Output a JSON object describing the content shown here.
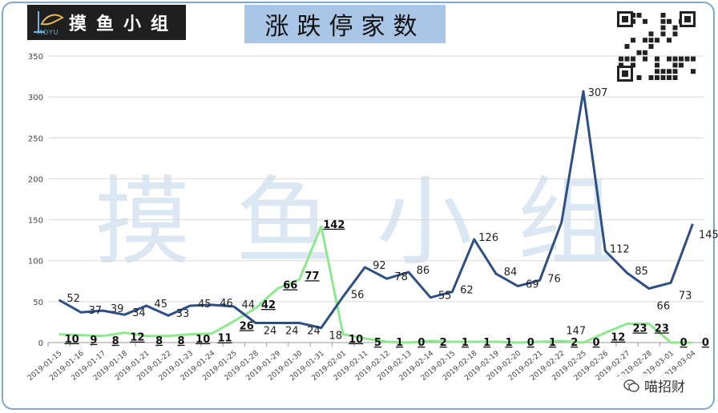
{
  "header": {
    "logo_text": "摸鱼小组",
    "logo_sub": "MOYU",
    "title": "涨跌停家数"
  },
  "watermark": "摸鱼小组",
  "footer": {
    "wechat_label": "喵招财"
  },
  "colors": {
    "limit_up": "#2e4f86",
    "limit_down": "#8ee88e",
    "title_bg": "#a9c6e6",
    "frame": "#7fa8cf"
  },
  "chart_data": {
    "type": "line",
    "title": "涨跌停家数",
    "ylim": [
      0,
      350
    ],
    "yticks": [
      0,
      50,
      100,
      150,
      200,
      250,
      300,
      350
    ],
    "grid": true,
    "categories": [
      "2019-01-15",
      "2019-01-16",
      "2019-01-17",
      "2019-01-18",
      "2019-01-21",
      "2019-01-22",
      "2019-01-23",
      "2019-01-24",
      "2019-01-25",
      "2019-01-28",
      "2019-01-29",
      "2019-01-30",
      "2019-01-31",
      "2019-02-01",
      "2019-02-11",
      "2019-02-12",
      "2019-02-13",
      "2019-02-14",
      "2019-02-15",
      "2019-02-18",
      "2019-02-19",
      "2019-02-20",
      "2019-02-21",
      "2019-02-22",
      "2019-02-25",
      "2019-02-26",
      "2019-02-27",
      "2019-02-28",
      "2019-03-01",
      "2019-03-04"
    ],
    "series": [
      {
        "key": "up",
        "values": [
          52,
          37,
          39,
          34,
          45,
          33,
          45,
          46,
          44,
          24,
          24,
          24,
          18,
          56,
          92,
          78,
          86,
          55,
          62,
          126,
          84,
          69,
          76,
          147,
          307,
          112,
          85,
          66,
          73,
          145
        ]
      },
      {
        "key": "down",
        "values": [
          10,
          9,
          8,
          12,
          8,
          8,
          10,
          11,
          26,
          42,
          66,
          77,
          142,
          10,
          5,
          1,
          0,
          2,
          1,
          1,
          1,
          0,
          1,
          2,
          0,
          12,
          23,
          23,
          0,
          0
        ]
      }
    ]
  }
}
